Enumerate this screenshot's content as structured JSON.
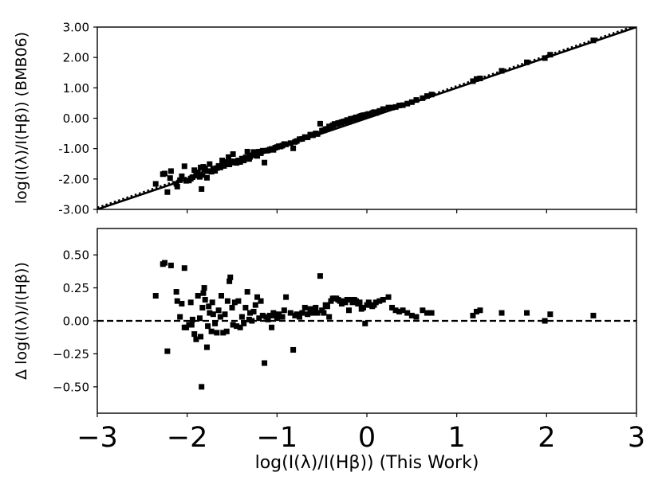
{
  "chart_data": [
    {
      "type": "scatter",
      "panel": "top",
      "title": "",
      "xlabel": "",
      "ylabel": "log(I(λ)/I(Hβ)) (BMB06)",
      "xlim": [
        -3,
        3
      ],
      "ylim": [
        -3,
        3
      ],
      "yticks": [
        -3,
        -2,
        -1,
        0,
        1,
        2,
        3
      ],
      "ytick_labels": [
        "-3.00",
        "-2.00",
        "-1.00",
        "0.00",
        "1.00",
        "2.00",
        "3.00"
      ],
      "grid": false,
      "lines": [
        {
          "style": "solid",
          "color": "#000000",
          "x": [
            -3,
            3
          ],
          "y": [
            -3,
            3
          ]
        },
        {
          "style": "dotted",
          "color": "#000000",
          "x": [
            -3,
            3
          ],
          "y": [
            -2.94,
            3.06
          ]
        }
      ],
      "points": [
        [
          -2.35,
          -2.16
        ],
        [
          -2.27,
          -1.84
        ],
        [
          -2.25,
          -1.82
        ],
        [
          -2.22,
          -2.43
        ],
        [
          -2.19,
          -1.97
        ],
        [
          -2.18,
          -1.74
        ],
        [
          -2.12,
          -2.16
        ],
        [
          -2.11,
          -2.25
        ],
        [
          -2.08,
          -2.04
        ],
        [
          -2.06,
          -1.91
        ],
        [
          -2.03,
          -1.58
        ],
        [
          -2.01,
          -2.06
        ],
        [
          -1.98,
          -2.05
        ],
        [
          -1.96,
          -1.99
        ],
        [
          -1.94,
          -1.94
        ],
        [
          -1.92,
          -1.71
        ],
        [
          -1.9,
          -1.89
        ],
        [
          -1.88,
          -1.78
        ],
        [
          -1.86,
          -1.93
        ],
        [
          -1.85,
          -1.62
        ],
        [
          -1.84,
          -2.33
        ],
        [
          -1.83,
          -1.87
        ],
        [
          -1.82,
          -1.6
        ],
        [
          -1.81,
          -1.68
        ],
        [
          -1.8,
          -1.65
        ],
        [
          -1.78,
          -1.96
        ],
        [
          -1.76,
          -1.74
        ],
        [
          -1.75,
          -1.51
        ],
        [
          -1.73,
          -1.76
        ],
        [
          -1.71,
          -1.66
        ],
        [
          -1.69,
          -1.73
        ],
        [
          -1.67,
          -1.64
        ],
        [
          -1.65,
          -1.57
        ],
        [
          -1.63,
          -1.62
        ],
        [
          -1.61,
          -1.39
        ],
        [
          -1.59,
          -1.57
        ],
        [
          -1.57,
          -1.48
        ],
        [
          -1.56,
          -1.44
        ],
        [
          -1.54,
          -1.28
        ],
        [
          -1.53,
          -1.52
        ],
        [
          -1.52,
          -1.42
        ],
        [
          -1.5,
          -1.46
        ],
        [
          -1.49,
          -1.18
        ],
        [
          -1.47,
          -1.42
        ],
        [
          -1.45,
          -1.47
        ],
        [
          -1.43,
          -1.39
        ],
        [
          -1.41,
          -1.44
        ],
        [
          -1.39,
          -1.33
        ],
        [
          -1.37,
          -1.39
        ],
        [
          -1.35,
          -1.29
        ],
        [
          -1.33,
          -1.1
        ],
        [
          -1.31,
          -1.34
        ],
        [
          -1.3,
          -1.27
        ],
        [
          -1.28,
          -1.22
        ],
        [
          -1.26,
          -1.11
        ],
        [
          -1.24,
          -1.22
        ],
        [
          -1.22,
          -1.24
        ],
        [
          -1.2,
          -1.1
        ],
        [
          -1.18,
          -1.15
        ],
        [
          -1.16,
          -1.07
        ],
        [
          -1.14,
          -1.46
        ],
        [
          -1.12,
          -1.07
        ],
        [
          -1.1,
          -1.06
        ],
        [
          -1.08,
          -1.03
        ],
        [
          -1.06,
          -1.01
        ],
        [
          -1.04,
          -1.04
        ],
        [
          -1.02,
          -0.97
        ],
        [
          -1.0,
          -0.95
        ],
        [
          -0.98,
          -0.92
        ],
        [
          -0.96,
          -0.93
        ],
        [
          -0.94,
          -0.9
        ],
        [
          -0.92,
          -0.85
        ],
        [
          -0.9,
          -0.86
        ],
        [
          -0.85,
          -0.82
        ],
        [
          -0.82,
          -0.99
        ],
        [
          -0.8,
          -0.78
        ],
        [
          -0.78,
          -0.75
        ],
        [
          -0.75,
          -0.69
        ],
        [
          -0.72,
          -0.68
        ],
        [
          -0.69,
          -0.62
        ],
        [
          -0.66,
          -0.63
        ],
        [
          -0.63,
          -0.54
        ],
        [
          -0.6,
          -0.56
        ],
        [
          -0.57,
          -0.5
        ],
        [
          -0.55,
          -0.52
        ],
        [
          -0.52,
          -0.18
        ],
        [
          -0.5,
          -0.41
        ],
        [
          -0.48,
          -0.4
        ],
        [
          -0.46,
          -0.36
        ],
        [
          -0.44,
          -0.35
        ],
        [
          -0.42,
          -0.27
        ],
        [
          -0.4,
          -0.3
        ],
        [
          -0.38,
          -0.23
        ],
        [
          -0.36,
          -0.19
        ],
        [
          -0.34,
          -0.19
        ],
        [
          -0.32,
          -0.16
        ],
        [
          -0.3,
          -0.15
        ],
        [
          -0.28,
          -0.13
        ],
        [
          -0.26,
          -0.11
        ],
        [
          -0.24,
          -0.1
        ],
        [
          -0.22,
          -0.06
        ],
        [
          -0.2,
          -0.12
        ],
        [
          -0.18,
          -0.02
        ],
        [
          -0.16,
          -0.02
        ],
        [
          -0.14,
          0.0
        ],
        [
          -0.12,
          0.03
        ],
        [
          -0.1,
          -0.01
        ],
        [
          -0.08,
          0.06
        ],
        [
          -0.06,
          0.08
        ],
        [
          -0.04,
          0.1
        ],
        [
          -0.02,
          0.1
        ],
        [
          0.0,
          0.12
        ],
        [
          0.02,
          0.14
        ],
        [
          0.04,
          0.12
        ],
        [
          0.06,
          0.17
        ],
        [
          0.08,
          0.2
        ],
        [
          0.1,
          0.17
        ],
        [
          0.14,
          0.24
        ],
        [
          0.18,
          0.3
        ],
        [
          0.24,
          0.35
        ],
        [
          0.28,
          0.35
        ],
        [
          0.32,
          0.37
        ],
        [
          0.36,
          0.42
        ],
        [
          0.4,
          0.43
        ],
        [
          0.45,
          0.48
        ],
        [
          0.5,
          0.53
        ],
        [
          0.55,
          0.6
        ],
        [
          0.62,
          0.66
        ],
        [
          0.67,
          0.73
        ],
        [
          0.72,
          0.78
        ],
        [
          1.18,
          1.22
        ],
        [
          1.22,
          1.29
        ],
        [
          1.26,
          1.31
        ],
        [
          1.5,
          1.56
        ],
        [
          1.78,
          1.84
        ],
        [
          1.98,
          1.98
        ],
        [
          2.04,
          2.09
        ],
        [
          2.52,
          2.56
        ]
      ]
    },
    {
      "type": "scatter",
      "panel": "bottom",
      "title": "",
      "xlabel": "log(I(λ)/I(Hβ)) (This Work)",
      "ylabel": "Δ log(I(λ)/I(Hβ))",
      "xlim": [
        -3,
        3
      ],
      "ylim": [
        -0.7,
        0.7
      ],
      "xticks": [
        -3,
        -2,
        -1,
        0,
        1,
        2,
        3
      ],
      "xtick_labels": [
        "−3",
        "−2",
        "−1",
        "0",
        "1",
        "2",
        "3"
      ],
      "yticks": [
        -0.5,
        -0.25,
        0,
        0.25,
        0.5
      ],
      "ytick_labels": [
        "−0.50",
        "−0.25",
        "0.00",
        "0.25",
        "0.50"
      ],
      "grid": false,
      "lines": [
        {
          "style": "dashed",
          "color": "#000000",
          "x": [
            -3,
            3
          ],
          "y": [
            0,
            0
          ]
        }
      ],
      "points": [
        [
          -2.35,
          0.19
        ],
        [
          -2.27,
          0.43
        ],
        [
          -2.25,
          0.44
        ],
        [
          -2.22,
          -0.23
        ],
        [
          -2.18,
          0.42
        ],
        [
          -2.12,
          0.22
        ],
        [
          -2.11,
          0.15
        ],
        [
          -2.08,
          0.03
        ],
        [
          -2.06,
          0.13
        ],
        [
          -2.03,
          0.4
        ],
        [
          -2.03,
          -0.05
        ],
        [
          -2.01,
          -0.05
        ],
        [
          -1.98,
          -0.03
        ],
        [
          -1.96,
          0.14
        ],
        [
          -1.95,
          -0.03
        ],
        [
          -1.94,
          0.01
        ],
        [
          -1.92,
          -0.1
        ],
        [
          -1.9,
          -0.14
        ],
        [
          -1.88,
          0.19
        ],
        [
          -1.86,
          0.02
        ],
        [
          -1.85,
          -0.12
        ],
        [
          -1.84,
          -0.5
        ],
        [
          -1.83,
          0.1
        ],
        [
          -1.82,
          0.21
        ],
        [
          -1.81,
          0.25
        ],
        [
          -1.8,
          0.16
        ],
        [
          -1.78,
          -0.2
        ],
        [
          -1.77,
          -0.04
        ],
        [
          -1.76,
          0.11
        ],
        [
          -1.75,
          0.06
        ],
        [
          -1.73,
          -0.08
        ],
        [
          -1.72,
          0.14
        ],
        [
          -1.71,
          0.05
        ],
        [
          -1.69,
          -0.02
        ],
        [
          -1.67,
          -0.09
        ],
        [
          -1.65,
          0.08
        ],
        [
          -1.63,
          0.03
        ],
        [
          -1.62,
          0.19
        ],
        [
          -1.6,
          -0.09
        ],
        [
          -1.58,
          0.05
        ],
        [
          -1.56,
          -0.08
        ],
        [
          -1.55,
          0.15
        ],
        [
          -1.53,
          0.3
        ],
        [
          -1.52,
          0.33
        ],
        [
          -1.5,
          0.1
        ],
        [
          -1.49,
          -0.03
        ],
        [
          -1.47,
          0.14
        ],
        [
          -1.45,
          -0.04
        ],
        [
          -1.43,
          0.15
        ],
        [
          -1.41,
          -0.05
        ],
        [
          -1.39,
          0.03
        ],
        [
          -1.37,
          -0.02
        ],
        [
          -1.35,
          0.1
        ],
        [
          -1.33,
          0.22
        ],
        [
          -1.31,
          0.01
        ],
        [
          -1.3,
          0.06
        ],
        [
          -1.28,
          0.0
        ],
        [
          -1.26,
          0.07
        ],
        [
          -1.24,
          0.12
        ],
        [
          -1.22,
          0.18
        ],
        [
          -1.2,
          0.02
        ],
        [
          -1.18,
          0.15
        ],
        [
          -1.16,
          0.04
        ],
        [
          -1.14,
          -0.32
        ],
        [
          -1.12,
          0.03
        ],
        [
          -1.1,
          0.01
        ],
        [
          -1.08,
          0.04
        ],
        [
          -1.06,
          -0.05
        ],
        [
          -1.04,
          0.06
        ],
        [
          -1.02,
          0.04
        ],
        [
          -1.0,
          0.02
        ],
        [
          -0.98,
          0.05
        ],
        [
          -0.96,
          0.03
        ],
        [
          -0.94,
          0.03
        ],
        [
          -0.92,
          0.08
        ],
        [
          -0.9,
          0.18
        ],
        [
          -0.85,
          0.06
        ],
        [
          -0.82,
          -0.22
        ],
        [
          -0.8,
          0.04
        ],
        [
          -0.78,
          0.05
        ],
        [
          -0.75,
          0.03
        ],
        [
          -0.72,
          0.06
        ],
        [
          -0.69,
          0.1
        ],
        [
          -0.66,
          0.05
        ],
        [
          -0.63,
          0.09
        ],
        [
          -0.6,
          0.06
        ],
        [
          -0.57,
          0.1
        ],
        [
          -0.55,
          0.06
        ],
        [
          -0.52,
          0.34
        ],
        [
          -0.5,
          0.08
        ],
        [
          -0.48,
          0.06
        ],
        [
          -0.46,
          0.12
        ],
        [
          -0.44,
          0.11
        ],
        [
          -0.42,
          0.03
        ],
        [
          -0.4,
          0.15
        ],
        [
          -0.38,
          0.17
        ],
        [
          -0.36,
          0.17
        ],
        [
          -0.34,
          0.17
        ],
        [
          -0.32,
          0.16
        ],
        [
          -0.3,
          0.15
        ],
        [
          -0.28,
          0.13
        ],
        [
          -0.26,
          0.15
        ],
        [
          -0.24,
          0.14
        ],
        [
          -0.22,
          0.16
        ],
        [
          -0.2,
          0.08
        ],
        [
          -0.18,
          0.16
        ],
        [
          -0.16,
          0.14
        ],
        [
          -0.14,
          0.16
        ],
        [
          -0.12,
          0.15
        ],
        [
          -0.1,
          0.13
        ],
        [
          -0.08,
          0.14
        ],
        [
          -0.06,
          0.09
        ],
        [
          -0.04,
          0.1
        ],
        [
          -0.02,
          -0.02
        ],
        [
          0.0,
          0.12
        ],
        [
          0.02,
          0.14
        ],
        [
          0.04,
          0.12
        ],
        [
          0.06,
          0.11
        ],
        [
          0.08,
          0.12
        ],
        [
          0.1,
          0.14
        ],
        [
          0.14,
          0.15
        ],
        [
          0.18,
          0.16
        ],
        [
          0.24,
          0.18
        ],
        [
          0.28,
          0.1
        ],
        [
          0.32,
          0.08
        ],
        [
          0.36,
          0.07
        ],
        [
          0.4,
          0.08
        ],
        [
          0.45,
          0.06
        ],
        [
          0.5,
          0.04
        ],
        [
          0.55,
          0.03
        ],
        [
          0.62,
          0.08
        ],
        [
          0.67,
          0.06
        ],
        [
          0.72,
          0.06
        ],
        [
          1.18,
          0.04
        ],
        [
          1.22,
          0.07
        ],
        [
          1.26,
          0.08
        ],
        [
          1.5,
          0.06
        ],
        [
          1.78,
          0.06
        ],
        [
          1.98,
          0.0
        ],
        [
          2.04,
          0.05
        ],
        [
          2.52,
          0.04
        ]
      ]
    }
  ]
}
